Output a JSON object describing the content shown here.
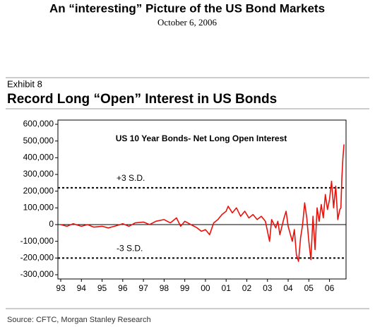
{
  "header": {
    "title": "An “interesting” Picture of the US Bond Markets",
    "date": "October 6, 2006"
  },
  "exhibit": "Exhibit 8",
  "source": "Source: CFTC, Morgan Stanley Research",
  "chart_data": {
    "type": "line",
    "title": "Record Long “Open” Interest in US Bonds",
    "subtitle": "US 10 Year Bonds- Net Long Open Interest",
    "x": [
      1993.0,
      1993.3,
      1993.6,
      1994.0,
      1994.3,
      1994.6,
      1995.0,
      1995.3,
      1995.6,
      1996.0,
      1996.3,
      1996.6,
      1997.0,
      1997.3,
      1997.6,
      1998.0,
      1998.3,
      1998.6,
      1998.8,
      1999.0,
      1999.3,
      1999.6,
      1999.8,
      2000.0,
      2000.2,
      2000.4,
      2000.6,
      2000.8,
      2001.0,
      2001.1,
      2001.3,
      2001.5,
      2001.7,
      2001.9,
      2002.1,
      2002.3,
      2002.5,
      2002.7,
      2002.9,
      2003.1,
      2003.2,
      2003.4,
      2003.5,
      2003.6,
      2003.8,
      2003.9,
      2004.0,
      2004.2,
      2004.3,
      2004.4,
      2004.5,
      2004.6,
      2004.7,
      2004.8,
      2004.9,
      2005.0,
      2005.1,
      2005.2,
      2005.3,
      2005.4,
      2005.5,
      2005.6,
      2005.7,
      2005.8,
      2005.9,
      2006.0,
      2006.1,
      2006.2,
      2006.3,
      2006.4,
      2006.5,
      2006.55,
      2006.6,
      2006.65,
      2006.7
    ],
    "series": [
      {
        "name": "Net Long Open Interest",
        "color": "#e8120c",
        "values": [
          0,
          -10000,
          5000,
          -10000,
          0,
          -15000,
          -10000,
          -20000,
          -10000,
          5000,
          -10000,
          10000,
          15000,
          0,
          20000,
          30000,
          10000,
          40000,
          -10000,
          20000,
          0,
          -20000,
          -40000,
          -30000,
          -60000,
          10000,
          30000,
          60000,
          80000,
          110000,
          70000,
          100000,
          50000,
          80000,
          40000,
          60000,
          30000,
          50000,
          20000,
          -100000,
          30000,
          -20000,
          20000,
          -60000,
          40000,
          80000,
          -10000,
          -100000,
          -30000,
          -180000,
          -220000,
          -80000,
          0,
          130000,
          40000,
          -100000,
          -210000,
          50000,
          -150000,
          100000,
          20000,
          120000,
          40000,
          180000,
          90000,
          150000,
          260000,
          100000,
          230000,
          30000,
          90000,
          100000,
          280000,
          400000,
          480000
        ]
      }
    ],
    "xlim": [
      1993,
      2006.8
    ],
    "xticks": [
      {
        "value": 1993,
        "label": "93"
      },
      {
        "value": 1994,
        "label": "94"
      },
      {
        "value": 1995,
        "label": "95"
      },
      {
        "value": 1996,
        "label": "96"
      },
      {
        "value": 1997,
        "label": "97"
      },
      {
        "value": 1998,
        "label": "98"
      },
      {
        "value": 1999,
        "label": "99"
      },
      {
        "value": 2000,
        "label": "00"
      },
      {
        "value": 2001,
        "label": "01"
      },
      {
        "value": 2002,
        "label": "02"
      },
      {
        "value": 2003,
        "label": "03"
      },
      {
        "value": 2004,
        "label": "04"
      },
      {
        "value": 2005,
        "label": "05"
      },
      {
        "value": 2006,
        "label": "06"
      }
    ],
    "ylim": [
      -300000,
      600000
    ],
    "yticks": [
      {
        "value": -300000,
        "label": "-300,000"
      },
      {
        "value": -200000,
        "label": "-200,000"
      },
      {
        "value": -100000,
        "label": "-100,000"
      },
      0,
      {
        "value": 100000,
        "label": "100,000"
      },
      {
        "value": 200000,
        "label": "200,000"
      },
      {
        "value": 300000,
        "label": "300,000"
      },
      {
        "value": 400000,
        "label": "400,000"
      },
      {
        "value": 500000,
        "label": "500,000"
      },
      {
        "value": 600000,
        "label": "600,000"
      }
    ],
    "reference_lines": [
      {
        "value": 220000,
        "label": "+3 S.D."
      },
      {
        "value": -200000,
        "label": "-3 S.D."
      }
    ]
  }
}
